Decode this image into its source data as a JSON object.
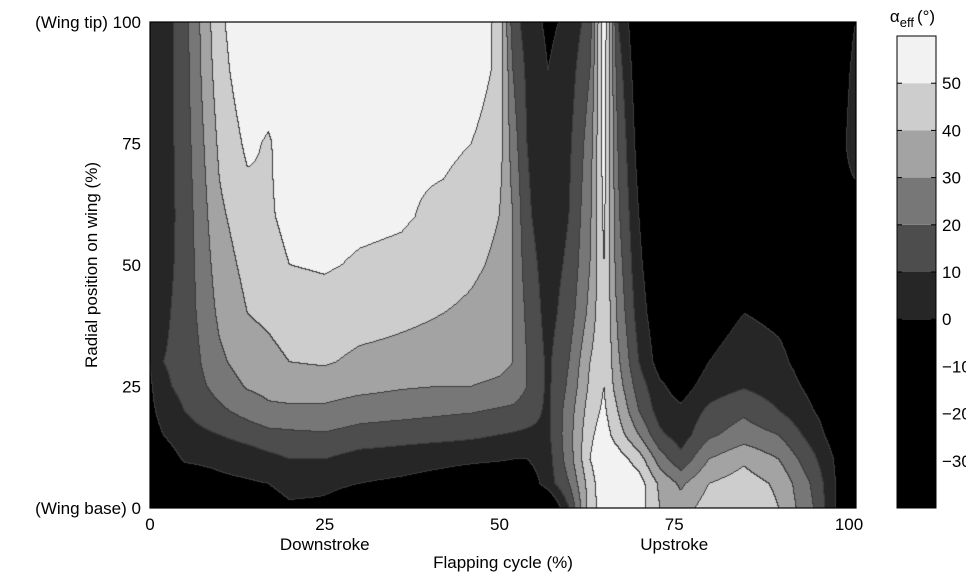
{
  "chart_data": {
    "type": "heatmap",
    "subtype": "filled-contour",
    "xlabel": "Flapping cycle (%)",
    "ylabel": "Radial position on wing (%)",
    "xlim": [
      0,
      101
    ],
    "ylim": [
      0,
      100
    ],
    "x_ticks": [
      "0",
      "25",
      "50",
      "75",
      "100"
    ],
    "y_ticks": [
      "0",
      "25",
      "50",
      "75",
      "100"
    ],
    "y_tick_prefix": {
      "0": "(Wing base) ",
      "100": "(Wing tip) "
    },
    "x_phase_labels": [
      {
        "text": "Downstroke",
        "at": 25
      },
      {
        "text": "Upstroke",
        "at": 75
      }
    ],
    "colorbar": {
      "title_symbol": "α",
      "title_subscript": "eff",
      "title_unit": "(°)",
      "range": [
        -40,
        60
      ],
      "ticks": [
        "50",
        "40",
        "30",
        "20",
        "10",
        "0",
        "−10",
        "−20",
        "−30"
      ],
      "tick_values": [
        50,
        40,
        30,
        20,
        10,
        0,
        -10,
        -20,
        -30
      ],
      "levels": [
        {
          "from": -40,
          "to": 0,
          "color": "#000000"
        },
        {
          "from": 0,
          "to": 10,
          "color": "#262626"
        },
        {
          "from": 10,
          "to": 20,
          "color": "#4d4d4d"
        },
        {
          "from": 20,
          "to": 30,
          "color": "#777777"
        },
        {
          "from": 30,
          "to": 40,
          "color": "#a3a3a3"
        },
        {
          "from": 40,
          "to": 50,
          "color": "#cdcdcd"
        },
        {
          "from": 50,
          "to": 60,
          "color": "#f2f2f2"
        }
      ]
    },
    "field": {
      "x": [
        0,
        2,
        5,
        10,
        14,
        17,
        20,
        25,
        30,
        36,
        42,
        46,
        50,
        52,
        54,
        57,
        60,
        63,
        65,
        67,
        70,
        73,
        76,
        80,
        85,
        90,
        95,
        99,
        101
      ],
      "y": [
        0,
        5,
        10,
        15,
        20,
        25,
        30,
        40,
        50,
        60,
        75,
        90,
        100
      ],
      "alpha": [
        [
          -10,
          -12,
          -10,
          -5,
          -4,
          -3,
          -1,
          -1,
          -3,
          -6,
          -12,
          -15,
          -18,
          -18,
          -18,
          -15,
          10,
          45,
          55,
          58,
          55,
          40,
          35,
          45,
          50,
          40,
          20,
          -5,
          -10
        ],
        [
          -10,
          -10,
          -6,
          -2,
          -1,
          0,
          2,
          1,
          0,
          -2,
          -5,
          -8,
          -10,
          -10,
          -8,
          5,
          20,
          45,
          58,
          60,
          55,
          38,
          28,
          40,
          45,
          38,
          18,
          -5,
          -10
        ],
        [
          -8,
          -6,
          1,
          2,
          4,
          7,
          10,
          10,
          6,
          5,
          3,
          2,
          1,
          0,
          0,
          6,
          25,
          50,
          58,
          55,
          45,
          25,
          13,
          30,
          38,
          30,
          12,
          -5,
          -10
        ],
        [
          -5,
          0,
          6,
          10,
          14,
          17,
          18,
          19,
          16,
          14,
          13,
          12,
          10,
          9,
          8,
          8,
          26,
          48,
          55,
          45,
          30,
          12,
          5,
          18,
          25,
          20,
          5,
          -8,
          -10
        ],
        [
          -3,
          4,
          10,
          18,
          24,
          28,
          28,
          28,
          25,
          24,
          22,
          21,
          19,
          18,
          15,
          8,
          25,
          45,
          52,
          40,
          20,
          5,
          2,
          12,
          18,
          10,
          0,
          -8,
          -10
        ],
        [
          -2,
          8,
          13,
          24,
          31,
          33,
          35,
          35,
          33,
          31,
          30,
          30,
          28,
          26,
          20,
          8,
          22,
          42,
          50,
          35,
          15,
          2,
          -5,
          5,
          9,
          5,
          -3,
          -8,
          -10
        ],
        [
          0,
          10,
          13,
          28,
          35,
          37,
          40,
          41,
          38,
          37,
          36,
          35,
          33,
          30,
          20,
          8,
          20,
          40,
          50,
          32,
          10,
          -5,
          -10,
          0,
          5,
          2,
          -5,
          -8,
          -10
        ],
        [
          0,
          8,
          14,
          32,
          40,
          42,
          45,
          46,
          44,
          42,
          40,
          38,
          35,
          30,
          18,
          6,
          15,
          33,
          50,
          28,
          5,
          -8,
          -15,
          -5,
          0,
          -2,
          -5,
          -8,
          -10
        ],
        [
          0,
          6,
          14,
          35,
          43,
          47,
          50,
          51,
          49,
          48,
          45,
          42,
          38,
          30,
          15,
          5,
          12,
          30,
          50,
          25,
          2,
          -10,
          -20,
          -12,
          -5,
          -5,
          -8,
          -10,
          -10
        ],
        [
          0,
          5,
          14,
          38,
          46,
          49,
          52,
          53,
          52,
          51,
          48,
          45,
          40,
          30,
          12,
          3,
          10,
          28,
          52,
          22,
          0,
          -12,
          -25,
          -18,
          -10,
          -8,
          -10,
          -5,
          -10
        ],
        [
          0,
          5,
          15,
          42,
          52,
          49,
          55,
          55,
          55,
          51,
          52,
          50,
          45,
          25,
          10,
          2,
          8,
          25,
          55,
          20,
          -5,
          -15,
          -25,
          -20,
          -15,
          -12,
          -10,
          -5,
          10
        ],
        [
          0,
          5,
          16,
          46,
          57,
          55,
          58,
          56,
          57,
          56,
          56,
          55,
          48,
          20,
          8,
          0,
          5,
          20,
          55,
          15,
          -8,
          -15,
          -25,
          -22,
          -18,
          -15,
          -12,
          -8,
          5
        ],
        [
          0,
          5,
          16,
          48,
          58,
          57,
          58,
          57,
          58,
          57,
          57,
          56,
          48,
          15,
          5,
          -2,
          2,
          15,
          58,
          10,
          -10,
          -18,
          -25,
          -22,
          -20,
          -18,
          -15,
          -10,
          0
        ]
      ]
    }
  }
}
